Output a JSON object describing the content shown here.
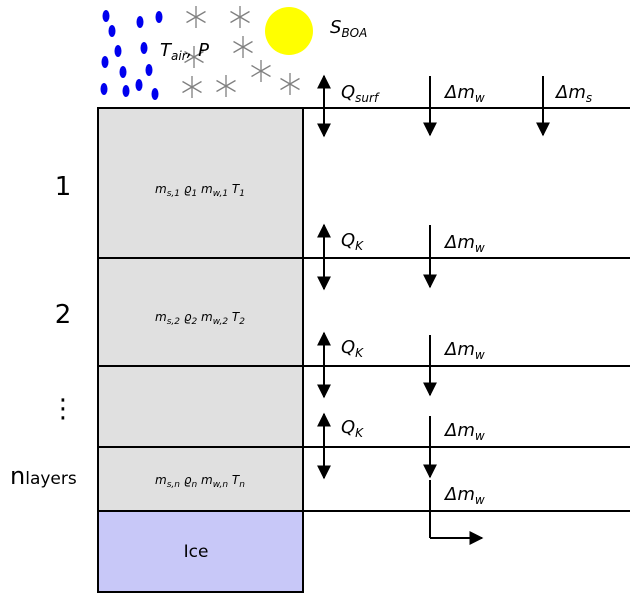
{
  "forcing": {
    "air_label": {
      "main": "T",
      "sub": "air",
      "rest": ", P"
    },
    "radiation_label": {
      "main": "S",
      "sub": "BOA"
    },
    "rain_color": "#0000ee",
    "sun_color": "#ffff00",
    "snowflake_color": "#808080"
  },
  "fluxes": {
    "surface_heat": {
      "main": "Q",
      "sub": "surf"
    },
    "water_mass": {
      "main": "Δm",
      "sub": "w"
    },
    "snow_mass": {
      "main": "Δm",
      "sub": "s"
    },
    "conductive_heat": {
      "main": "Q",
      "sub": "K"
    }
  },
  "layer_labels": [
    "1",
    "2",
    "⋮"
  ],
  "n_layers_label": {
    "main": "n",
    "sub": "layers"
  },
  "layer_contents": [
    [
      {
        "main": "m",
        "sub": "s,1"
      },
      {
        "main": "ϱ",
        "sub": "1"
      },
      {
        "main": "m",
        "sub": "w,1"
      },
      {
        "main": "T",
        "sub": "1"
      }
    ],
    [
      {
        "main": "m",
        "sub": "s,2"
      },
      {
        "main": "ϱ",
        "sub": "2"
      },
      {
        "main": "m",
        "sub": "w,2"
      },
      {
        "main": "T",
        "sub": "2"
      }
    ],
    [
      {
        "main": "m",
        "sub": "s,n"
      },
      {
        "main": "ϱ",
        "sub": "n"
      },
      {
        "main": "m",
        "sub": "w,n"
      },
      {
        "main": "T",
        "sub": "n"
      }
    ]
  ],
  "ice_label": "Ice",
  "colors": {
    "layer_fill": "#e0e0e0",
    "ice_fill": "#c8c8f8",
    "line": "#000000"
  }
}
